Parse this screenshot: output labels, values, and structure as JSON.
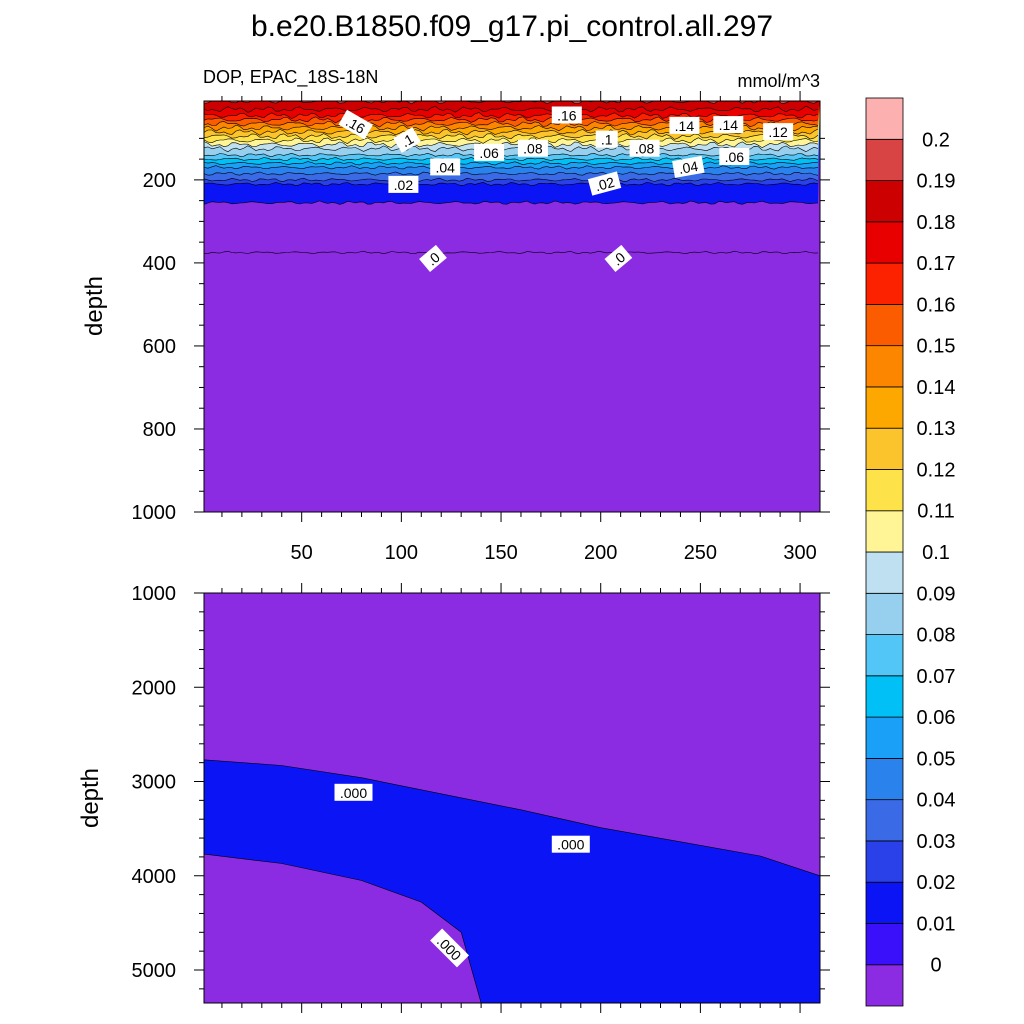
{
  "title": "b.e20.B1850.f09_g17.pi_control.all.297",
  "colors": {
    "levels": [
      "#8b2be2",
      "#3a10fb",
      "#0a14f5",
      "#2a40e8",
      "#3a6ae6",
      "#2a82ec",
      "#1aa0f7",
      "#00c0f5",
      "#52c6f6",
      "#96d0ee",
      "#bee0f0",
      "#fff597",
      "#fde24a",
      "#fcc42c",
      "#fca800",
      "#fc8600",
      "#fc5c00",
      "#fc2200",
      "#e80000",
      "#cc0000",
      "#d84444",
      "#fcb0b0"
    ]
  },
  "chart_data": [
    {
      "type": "contour",
      "left_subtitle": "DOP, EPAC_18S-18N",
      "right_subtitle": "mmol/m^3",
      "ylabel": "depth",
      "xlim": [
        1,
        310
      ],
      "ylim": [
        1000,
        10
      ],
      "x_ticks": [
        50,
        100,
        150,
        200,
        250,
        300
      ],
      "y_ticks": [
        200,
        400,
        600,
        800,
        1000
      ],
      "bands": [
        {
          "depth": 10,
          "level": 0.19
        },
        {
          "depth": 30,
          "level": 0.18
        },
        {
          "depth": 45,
          "level": 0.17
        },
        {
          "depth": 55,
          "level": 0.16
        },
        {
          "depth": 65,
          "level": 0.15
        },
        {
          "depth": 75,
          "level": 0.14
        },
        {
          "depth": 85,
          "level": 0.13
        },
        {
          "depth": 95,
          "level": 0.12
        },
        {
          "depth": 105,
          "level": 0.11
        },
        {
          "depth": 115,
          "level": 0.1
        },
        {
          "depth": 125,
          "level": 0.09
        },
        {
          "depth": 140,
          "level": 0.08
        },
        {
          "depth": 150,
          "level": 0.07
        },
        {
          "depth": 160,
          "level": 0.06
        },
        {
          "depth": 170,
          "level": 0.05
        },
        {
          "depth": 185,
          "level": 0.04
        },
        {
          "depth": 200,
          "level": 0.03
        },
        {
          "depth": 210,
          "level": 0.02
        },
        {
          "depth": 255,
          "level": 0.01
        },
        {
          "depth": 375,
          "level": 0
        }
      ],
      "contour_labels": [
        {
          "text": ".16",
          "x": 77,
          "depth": 68,
          "angle": 30
        },
        {
          "text": ".1",
          "x": 103,
          "depth": 105,
          "angle": -30
        },
        {
          "text": ".16",
          "x": 183,
          "depth": 45,
          "angle": 0
        },
        {
          "text": ".1",
          "x": 203,
          "depth": 103,
          "angle": 0
        },
        {
          "text": ".14",
          "x": 242,
          "depth": 70,
          "angle": 0
        },
        {
          "text": ".14",
          "x": 264,
          "depth": 68,
          "angle": 0
        },
        {
          "text": ".12",
          "x": 289,
          "depth": 85,
          "angle": 0
        },
        {
          "text": ".08",
          "x": 166,
          "depth": 125,
          "angle": 0
        },
        {
          "text": ".08",
          "x": 222,
          "depth": 125,
          "angle": 0
        },
        {
          "text": ".06",
          "x": 144,
          "depth": 135,
          "angle": 0
        },
        {
          "text": ".06",
          "x": 267,
          "depth": 145,
          "angle": 0
        },
        {
          "text": ".04",
          "x": 122,
          "depth": 170,
          "angle": 0
        },
        {
          "text": ".04",
          "x": 244,
          "depth": 170,
          "angle": -10
        },
        {
          "text": ".02",
          "x": 101,
          "depth": 212,
          "angle": 0
        },
        {
          "text": ".02",
          "x": 202,
          "depth": 210,
          "angle": -15
        },
        {
          "text": ".0",
          "x": 116,
          "depth": 390,
          "angle": -40
        },
        {
          "text": ".0",
          "x": 209,
          "depth": 390,
          "angle": -40
        }
      ]
    },
    {
      "type": "contour",
      "ylabel": "depth",
      "xlim": [
        1,
        310
      ],
      "ylim": [
        5350,
        1000
      ],
      "y_ticks": [
        1000,
        2000,
        3000,
        4000,
        5000
      ],
      "regions": [
        {
          "level": 0,
          "note": "upper"
        },
        {
          "level": 0.01,
          "upper_boundary": [
            [
              1,
              2770
            ],
            [
              40,
              2830
            ],
            [
              80,
              2960
            ],
            [
              120,
              3130
            ],
            [
              160,
              3300
            ],
            [
              200,
              3490
            ],
            [
              240,
              3640
            ],
            [
              280,
              3790
            ],
            [
              310,
              4000
            ]
          ],
          "lower_boundary": [
            [
              1,
              3770
            ],
            [
              40,
              3870
            ],
            [
              80,
              4050
            ],
            [
              110,
              4280
            ],
            [
              130,
              4600
            ],
            [
              140,
              5350
            ]
          ]
        },
        {
          "level": 0,
          "note": "lower-left"
        }
      ],
      "contour_labels": [
        {
          "text": ".000",
          "x": 76,
          "depth": 3120,
          "angle": 0
        },
        {
          "text": ".000",
          "x": 185,
          "depth": 3670,
          "angle": 0
        },
        {
          "text": ".000",
          "x": 124,
          "depth": 4770,
          "angle": 45
        }
      ]
    },
    {
      "type": "colorbar",
      "labels": [
        "0",
        "0.01",
        "0.02",
        "0.03",
        "0.04",
        "0.05",
        "0.06",
        "0.07",
        "0.08",
        "0.09",
        "0.1",
        "0.11",
        "0.12",
        "0.13",
        "0.14",
        "0.15",
        "0.16",
        "0.17",
        "0.18",
        "0.19",
        "0.2"
      ]
    }
  ]
}
